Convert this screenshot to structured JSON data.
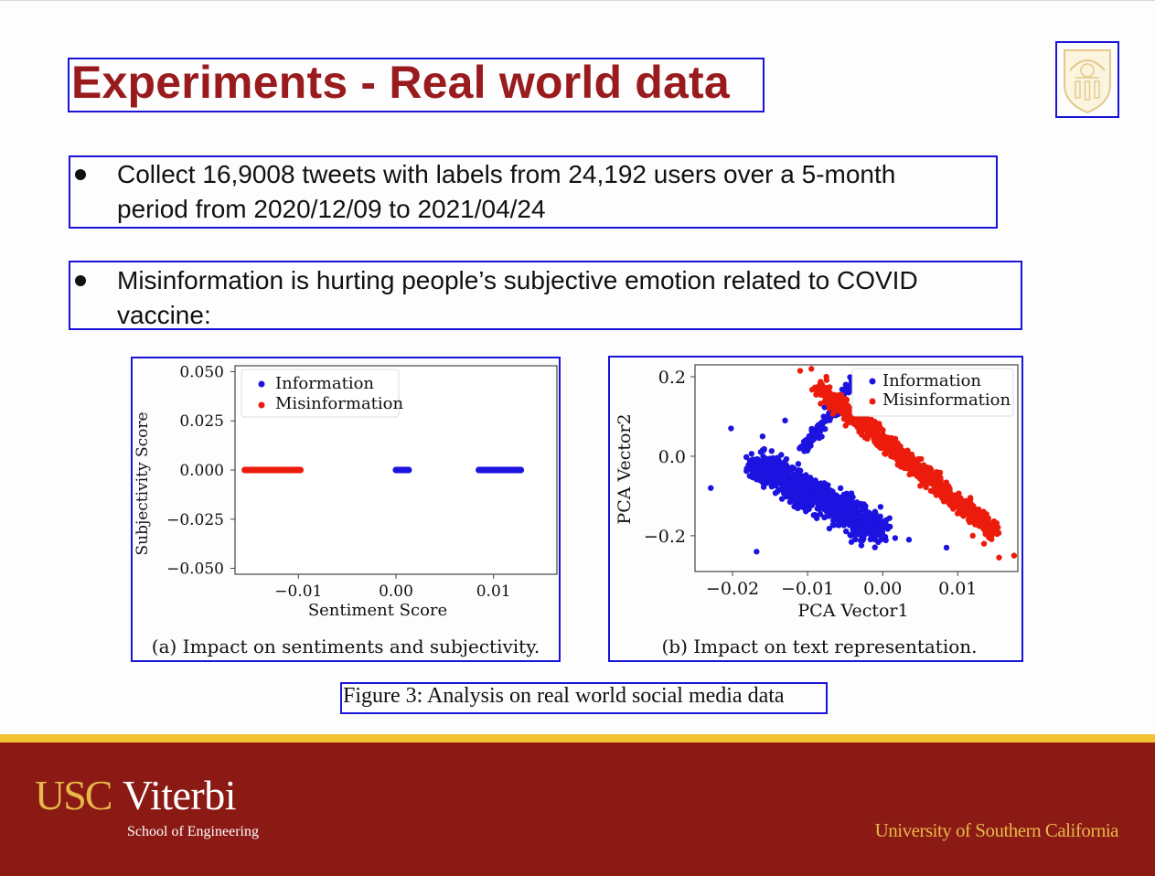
{
  "slide": {
    "title": "Experiments - Real world data",
    "bullets": [
      {
        "lines": [
          "Collect 16,9008 tweets with labels from 24,192 users over a 5-month",
          "period from 2020/12/09 to 2021/04/24"
        ]
      },
      {
        "lines": [
          "Misinformation is hurting people’s subjective emotion related to COVID",
          "vaccine:"
        ]
      }
    ],
    "figure_caption": "Figure 3: Analysis on real world social media data",
    "colors": {
      "title": "#991b1e",
      "info": "#1d13e0",
      "misinfo": "#ec1c0c",
      "footer": "#8b1914",
      "gold": "#e7b84a"
    }
  },
  "footer": {
    "brand_usc": "USC",
    "brand_viterbi": "Viterbi",
    "school": "School of Engineering",
    "university": "University of Southern California"
  },
  "chart_data": [
    {
      "type": "scatter",
      "caption": "(a) Impact on sentiments and subjectivity.",
      "xlabel": "Sentiment Score",
      "ylabel": "Subjectivity Score",
      "xlim": [
        -0.0165,
        0.0165
      ],
      "ylim": [
        -0.053,
        0.053
      ],
      "xticks": [
        -0.01,
        0.0,
        0.01
      ],
      "xtick_labels": [
        "−0.01",
        "0.00",
        "0.01"
      ],
      "yticks": [
        0.05,
        0.025,
        0.0,
        -0.025,
        -0.05
      ],
      "ytick_labels": [
        "0.050",
        "0.025",
        "0.000",
        "−0.025",
        "−0.050"
      ],
      "legend_position": "top-left",
      "series": [
        {
          "name": "Information",
          "color": "#1d13e0",
          "x_ranges": [
            [
              0.0,
              0.0013
            ],
            [
              0.0085,
              0.0128
            ]
          ],
          "y": 0.0
        },
        {
          "name": "Misinformation",
          "color": "#ec1c0c",
          "x_ranges": [
            [
              -0.0155,
              -0.0098
            ]
          ],
          "y": 0.0
        }
      ]
    },
    {
      "type": "scatter",
      "caption": "(b) Impact on text representation.",
      "xlabel": "PCA Vector1",
      "ylabel": "PCA Vector2",
      "xlim": [
        -0.025,
        0.018
      ],
      "ylim": [
        -0.29,
        0.23
      ],
      "xticks": [
        -0.02,
        -0.01,
        0.0,
        0.01
      ],
      "xtick_labels": [
        "−0.02",
        "−0.01",
        "0.00",
        "0.01"
      ],
      "yticks": [
        0.2,
        0.0,
        -0.2
      ],
      "ytick_labels": [
        "0.2",
        "0.0",
        "−0.2"
      ],
      "legend_position": "top-right",
      "series": [
        {
          "name": "Information",
          "color": "#1d13e0",
          "cluster": {
            "x_range": [
              -0.021,
              0.003
            ],
            "y_range": [
              -0.24,
              0.21
            ]
          }
        },
        {
          "name": "Misinformation",
          "color": "#ec1c0c",
          "cluster": {
            "x_range": [
              -0.011,
              0.017
            ],
            "y_range": [
              -0.27,
              0.22
            ]
          }
        }
      ]
    }
  ]
}
